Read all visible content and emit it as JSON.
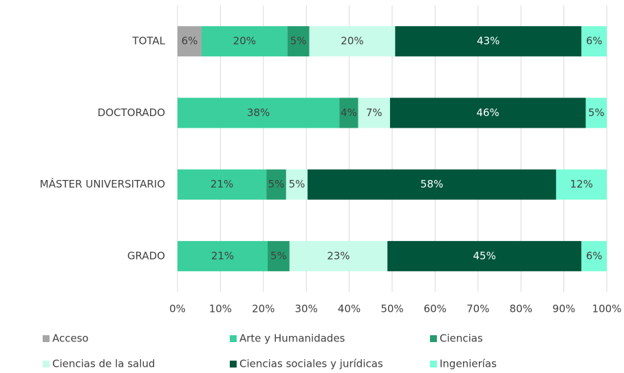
{
  "chart_data": {
    "type": "stacked_bar_horizontal",
    "categories": [
      "TOTAL",
      "DOCTORADO",
      "MÁSTER UNIVERSITARIO",
      "GRADO"
    ],
    "series": [
      {
        "name": "Acceso",
        "color": "#a6a6a6",
        "values": [
          5.6,
          null,
          null,
          null
        ],
        "value_labels": [
          "6%",
          null,
          null,
          null
        ]
      },
      {
        "name": "Arte y Humanidades",
        "color": "#3acf9c",
        "values": [
          20.0,
          37.7,
          20.7,
          21.0
        ],
        "value_labels": [
          "20%",
          "38%",
          "21%",
          "21%"
        ]
      },
      {
        "name": "Ciencias",
        "color": "#259c6f",
        "values": [
          5.1,
          4.4,
          4.6,
          5.1
        ],
        "value_labels": [
          "5%",
          "4%",
          "5%",
          "5%"
        ]
      },
      {
        "name": "Ciencias de la salud",
        "color": "#c8fbea",
        "values": [
          20.0,
          7.4,
          5.0,
          22.8
        ],
        "value_labels": [
          "20%",
          "7%",
          "5%",
          "23%"
        ]
      },
      {
        "name": "Ciencias sociales y jurídicas",
        "color": "#00553b",
        "values": [
          43.4,
          45.6,
          57.9,
          45.2
        ],
        "value_labels": [
          "43%",
          "46%",
          "58%",
          "45%"
        ]
      },
      {
        "name": "Ingenierías",
        "color": "#7afcd8",
        "values": [
          5.9,
          4.9,
          11.8,
          5.9
        ],
        "value_labels": [
          "6%",
          "5%",
          "12%",
          "6%"
        ]
      }
    ],
    "xlim": [
      0,
      100
    ],
    "xticks": [
      {
        "value": 0,
        "label": "0%"
      },
      {
        "value": 10,
        "label": "10%"
      },
      {
        "value": 20,
        "label": "20%"
      },
      {
        "value": 30,
        "label": "30%"
      },
      {
        "value": 40,
        "label": "40%"
      },
      {
        "value": 50,
        "label": "50%"
      },
      {
        "value": 60,
        "label": "60%"
      },
      {
        "value": 70,
        "label": "70%"
      },
      {
        "value": 80,
        "label": "80%"
      },
      {
        "value": 90,
        "label": "90%"
      },
      {
        "value": 100,
        "label": "100%"
      }
    ],
    "grid": true
  }
}
